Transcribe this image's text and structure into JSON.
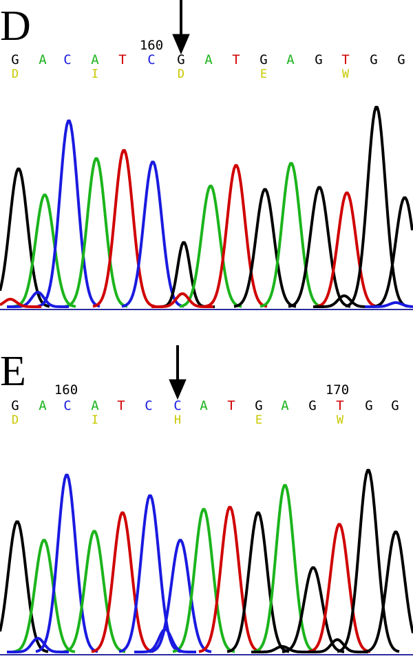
{
  "panels": [
    {
      "label": "D",
      "positions": [
        "160"
      ],
      "bases": [
        "G",
        "A",
        "C",
        "A",
        "T",
        "C",
        "G",
        "A",
        "T",
        "G",
        "A",
        "G",
        "T",
        "G",
        "G"
      ],
      "amino_acids": [
        "D",
        "I",
        "D",
        "E",
        "W"
      ]
    },
    {
      "label": "E",
      "positions": [
        "160",
        "170"
      ],
      "bases": [
        "G",
        "A",
        "C",
        "A",
        "T",
        "C",
        "C",
        "A",
        "T",
        "G",
        "A",
        "G",
        "T",
        "G",
        "G"
      ],
      "amino_acids": [
        "D",
        "I",
        "H",
        "E",
        "W"
      ]
    }
  ]
}
